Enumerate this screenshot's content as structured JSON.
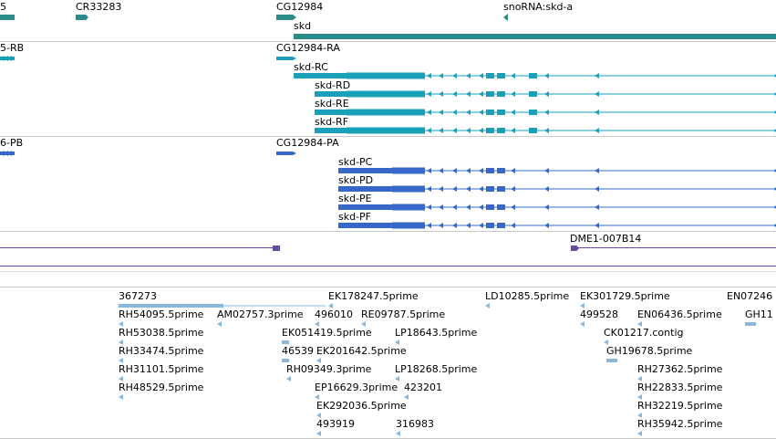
{
  "colors": {
    "gene": "#2a8b8b",
    "transcript_annotated": "#18a0b8",
    "transcript_predicted": "#3568c8",
    "clone": "#6a4aa0",
    "est": "#8ab8dc",
    "separator": "#c8c8c8"
  },
  "gene_track": {
    "labels": [
      "5",
      "CR33283",
      "CG12984",
      "snoRNA:skd-a",
      "skd"
    ]
  },
  "transcript_track_1": {
    "labels": [
      "5-RB",
      "CG12984-RA",
      "skd-RC",
      "skd-RD",
      "skd-RE",
      "skd-RF"
    ]
  },
  "transcript_track_2": {
    "labels": [
      "6-PB",
      "CG12984-PA",
      "skd-PC",
      "skd-PD",
      "skd-PE",
      "skd-PF"
    ]
  },
  "clone_track": {
    "labels": [
      "DME1-007B14"
    ]
  },
  "est_track": {
    "labels": [
      "367273",
      "EK178247.5prime",
      "LD10285.5prime",
      "EK301729.5prime",
      "EN07246",
      "RH54095.5prime",
      "AM02757.3prime",
      "496010",
      "RE09787.5prime",
      "499528",
      "EN06436.5prime",
      "GH11",
      "RH53038.5prime",
      "EK051419.5prime",
      "LP18643.5prime",
      "CK01217.contig",
      "RH33474.5prime",
      "46539",
      "EK201642.5prime",
      "GH19678.5prime",
      "RH31101.5prime",
      "RH09349.3prime",
      "LP18268.5prime",
      "RH27362.5prime",
      "RH48529.5prime",
      "EP16629.3prime",
      "423201",
      "RH22833.5prime",
      "EK292036.5prime",
      "RH32219.5prime",
      "493919",
      "316983",
      "RH35942.5prime"
    ]
  }
}
